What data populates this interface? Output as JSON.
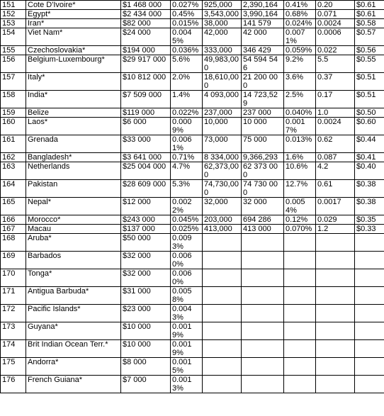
{
  "table": {
    "rows": [
      [
        "151",
        "Cote D'Ivoire*",
        "$1 468 000",
        "0.027%",
        "925,000",
        "2,390,164",
        "0.41%",
        "0.20",
        "$0.61"
      ],
      [
        "152",
        "Egypt*",
        "$2 434 000",
        "0.45%",
        "3,543,000",
        "3,990,164",
        "0.68%",
        "0.071",
        "$0.61"
      ],
      [
        "153",
        "Iran*",
        "$82 000",
        "0.015%",
        "38,000",
        "141 579",
        "0.024%",
        "0.0024",
        "$0.58"
      ],
      [
        "154",
        "Viet Nam*",
        "$24 000",
        "0.0045%",
        "42,000",
        "42 000",
        "0.0071%",
        "0.0006",
        "$0.57"
      ],
      [
        "155",
        "Czechoslovakia*",
        "$194 000",
        "0.036%",
        "333,000",
        "346 429",
        "0.059%",
        "0.022",
        "$0.56"
      ],
      [
        "156",
        "Belgium-Luxembourg*",
        "$29 917 000",
        "5.6%",
        "49,983,000",
        "54 594 546",
        "9.2%",
        "5.5",
        "$0.55"
      ],
      [
        "157",
        "Italy*",
        "$10 812 000",
        "2.0%",
        "18,610,000",
        "21 200 000",
        "3.6%",
        "0.37",
        "$0.51"
      ],
      [
        "158",
        "India*",
        "$7 509 000",
        "1.4%",
        "4 093,000",
        "14 723,529",
        "2.5%",
        "0.17",
        "$0.51"
      ],
      [
        "159",
        "Belize",
        "$119 000",
        "0.022%",
        "237,000",
        "237 000",
        "0.040%",
        "1.0",
        "$0.50"
      ],
      [
        "160",
        "Laos*",
        "$6 000",
        "0.0009%",
        "10,000",
        "10 000",
        "0.0017%",
        "0.0024",
        "$0.60"
      ],
      [
        "161",
        "Grenada",
        "$33 000",
        "0.0061%",
        "73,000",
        "75 000",
        "0.013%",
        "0.62",
        "$0.44"
      ],
      [
        "162",
        "Bangladesh*",
        "$3 641 000",
        "0.71%",
        "8 334,000",
        "9,366,293",
        "1.6%",
        "0.087",
        "$0.41"
      ],
      [
        "163",
        "Netherlands",
        "$25 004 000",
        "4.7%",
        "62,373,000",
        "62 373 000",
        "10.6%",
        "4.2",
        "$0.40"
      ],
      [
        "164",
        "Pakistan",
        "$28 609 000",
        "5.3%",
        "74,730,000",
        "74 730 000",
        "12.7%",
        "0.61",
        "$0.38"
      ],
      [
        "165",
        "Nepal*",
        "$12 000",
        "0.0022%",
        "32,000",
        "32 000",
        "0.0054%",
        "0.0017",
        "$0.38"
      ],
      [
        "166",
        "Morocco*",
        "$243 000",
        "0.045%",
        "203,000",
        "694 286",
        "0.12%",
        "0.029",
        "$0.35"
      ],
      [
        "167",
        "Macau",
        "$137 000",
        "0.025%",
        "413,000",
        "413 000",
        "0.070%",
        "1.2",
        "$0.33"
      ],
      [
        "168",
        "Aruba*",
        "$50 000",
        "0.0093%"
      ],
      [
        "169",
        "Barbados",
        "$32 000",
        "0.0060%"
      ],
      [
        "170",
        "Tonga*",
        "$32 000",
        "0.0060%"
      ],
      [
        "171",
        "Antigua Barbuda*",
        "$31 000",
        "0.0058%"
      ],
      [
        "172",
        "Pacific Islands*",
        "$23 000",
        "0.0043%"
      ],
      [
        "173",
        "Guyana*",
        "$10 000",
        "0.0019%"
      ],
      [
        "174",
        "Brit Indian Ocean Terr.*",
        "$10 000",
        "0.0019%"
      ],
      [
        "175",
        "Andorra*",
        "$8 000",
        "0.0015%"
      ],
      [
        "176",
        "French Guiana*",
        "$7 000",
        "0.0013%"
      ]
    ]
  }
}
